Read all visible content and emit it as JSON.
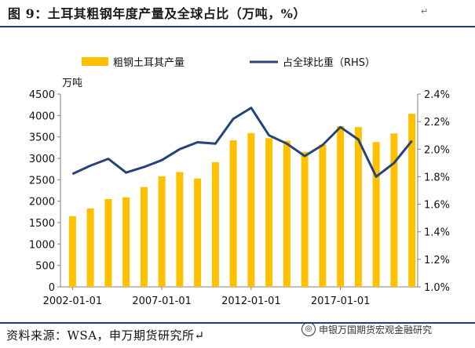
{
  "header": {
    "title": "图 9：土耳其粗钢年度产量及全球占比（万吨，%）",
    "title_mark": "↵"
  },
  "footer": {
    "source": "资料来源：WSA，申万期货研究所↵",
    "watermark": "申银万国期货宏观金融研究"
  },
  "colors": {
    "bar": "#FFC000",
    "line": "#264478",
    "rule": "#1F3A93"
  },
  "chart_data": {
    "type": "bar",
    "left_unit": "万吨",
    "legend": [
      {
        "name": "粗钢土耳其产量",
        "kind": "bar"
      },
      {
        "name": "占全球比重（RHS）",
        "kind": "line"
      }
    ],
    "legend_placement": "top",
    "x": [
      "2002-01-01",
      "2003-01-01",
      "2004-01-01",
      "2005-01-01",
      "2006-01-01",
      "2007-01-01",
      "2008-01-01",
      "2009-01-01",
      "2010-01-01",
      "2011-01-01",
      "2012-01-01",
      "2013-01-01",
      "2014-01-01",
      "2015-01-01",
      "2016-01-01",
      "2017-01-01",
      "2018-01-01",
      "2019-01-01",
      "2020-01-01",
      "2021-01-01"
    ],
    "x_tick_labels": [
      "2002-01-01",
      "2007-01-01",
      "2012-01-01",
      "2017-01-01"
    ],
    "series": [
      {
        "name": "粗钢土耳其产量",
        "kind": "bar",
        "axis": "left",
        "values": [
          1650,
          1830,
          2050,
          2090,
          2330,
          2580,
          2680,
          2530,
          2910,
          3420,
          3590,
          3470,
          3410,
          3150,
          3320,
          3750,
          3730,
          3380,
          3580,
          4040
        ]
      },
      {
        "name": "占全球比重（RHS）",
        "kind": "line",
        "axis": "right",
        "values": [
          1.82,
          1.88,
          1.93,
          1.83,
          1.87,
          1.92,
          2.0,
          2.05,
          2.04,
          2.22,
          2.3,
          2.1,
          2.04,
          1.95,
          2.03,
          2.16,
          2.07,
          1.8,
          1.9,
          2.06
        ]
      }
    ],
    "y_left": {
      "lim": [
        0,
        4500
      ],
      "ticks": [
        0,
        500,
        1000,
        1500,
        2000,
        2500,
        3000,
        3500,
        4000,
        4500
      ]
    },
    "y_right": {
      "lim": [
        1.0,
        2.4
      ],
      "ticks": [
        "1.0%",
        "1.2%",
        "1.4%",
        "1.6%",
        "1.8%",
        "2.0%",
        "2.2%",
        "2.4%"
      ]
    },
    "grid": false
  }
}
